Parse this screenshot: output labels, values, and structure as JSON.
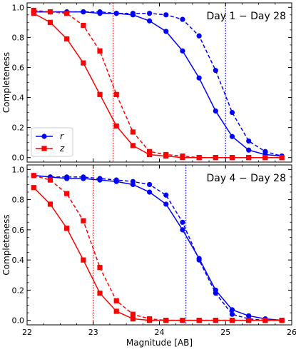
{
  "chart_data": [
    {
      "type": "line",
      "title": "Day 1 − Day 28",
      "xlabel": "",
      "ylabel": "Completeness",
      "xlim": [
        22,
        26
      ],
      "ylim": [
        -0.03,
        1.03
      ],
      "x_ticks": [
        "22",
        "23",
        "24",
        "25",
        "26"
      ],
      "y_ticks": [
        "0.0",
        "0.2",
        "0.4",
        "0.6",
        "0.8",
        "1.0"
      ],
      "show_x_tick_labels": false,
      "legend": {
        "position": "lower-left",
        "entries": [
          "r",
          "z"
        ]
      },
      "series": [
        {
          "name": "r",
          "style": "solid",
          "marker": "circle",
          "color": "#0000ff",
          "x": [
            22.1,
            22.35,
            22.6,
            22.85,
            23.1,
            23.35,
            23.6,
            23.85,
            24.1,
            24.35,
            24.6,
            24.85,
            25.1,
            25.35,
            25.6,
            25.85
          ],
          "y": [
            0.97,
            0.97,
            0.97,
            0.97,
            0.96,
            0.96,
            0.95,
            0.91,
            0.84,
            0.71,
            0.53,
            0.31,
            0.14,
            0.05,
            0.02,
            0.01
          ]
        },
        {
          "name": "",
          "style": "dashed",
          "marker": "circle",
          "color": "#0000ff",
          "x": [
            22.1,
            22.35,
            22.6,
            22.85,
            23.1,
            23.35,
            23.6,
            23.85,
            24.1,
            24.35,
            24.6,
            24.85,
            25.1,
            25.35,
            25.6,
            25.85
          ],
          "y": [
            0.97,
            0.97,
            0.97,
            0.97,
            0.97,
            0.96,
            0.96,
            0.96,
            0.95,
            0.92,
            0.81,
            0.58,
            0.3,
            0.11,
            0.04,
            0.01
          ]
        },
        {
          "name": "z",
          "style": "solid",
          "marker": "square",
          "color": "#ff0000",
          "x": [
            22.1,
            22.35,
            22.6,
            22.85,
            23.1,
            23.35,
            23.6,
            23.85,
            24.1,
            24.35,
            24.6,
            24.85,
            25.1,
            25.35,
            25.6,
            25.85
          ],
          "y": [
            0.96,
            0.9,
            0.79,
            0.63,
            0.42,
            0.21,
            0.08,
            0.02,
            0.01,
            0.0,
            0.0,
            0.0,
            0.0,
            0.0,
            0.0,
            0.0
          ]
        },
        {
          "name": "",
          "style": "dashed",
          "marker": "square",
          "color": "#ff0000",
          "x": [
            22.1,
            22.35,
            22.6,
            22.85,
            23.1,
            23.35,
            23.6,
            23.85,
            24.1,
            24.35,
            24.6,
            24.85,
            25.1,
            25.35,
            25.6,
            25.85
          ],
          "y": [
            0.98,
            0.97,
            0.96,
            0.88,
            0.71,
            0.42,
            0.17,
            0.04,
            0.02,
            0.01,
            0.0,
            0.0,
            0.0,
            0.0,
            0.0,
            0.0
          ]
        }
      ],
      "vlines": [
        {
          "x": 23.3,
          "color": "#ff0000",
          "style": "dotted"
        },
        {
          "x": 25.0,
          "color": "#0000ff",
          "style": "dotted"
        }
      ]
    },
    {
      "type": "line",
      "title": "Day 4 − Day 28",
      "xlabel": "Magnitude [AB]",
      "ylabel": "Completeness",
      "xlim": [
        22,
        26
      ],
      "ylim": [
        -0.03,
        1.03
      ],
      "x_ticks": [
        "22",
        "23",
        "24",
        "25",
        "26"
      ],
      "y_ticks": [
        "0.0",
        "0.2",
        "0.4",
        "0.6",
        "0.8",
        "1.0"
      ],
      "show_x_tick_labels": true,
      "series": [
        {
          "name": "r",
          "style": "solid",
          "marker": "circle",
          "color": "#0000ff",
          "x": [
            22.1,
            22.35,
            22.6,
            22.85,
            23.1,
            23.35,
            23.6,
            23.85,
            24.1,
            24.35,
            24.6,
            24.85,
            25.1,
            25.35,
            25.6,
            25.85
          ],
          "y": [
            0.96,
            0.95,
            0.94,
            0.94,
            0.93,
            0.92,
            0.9,
            0.85,
            0.77,
            0.6,
            0.41,
            0.2,
            0.07,
            0.03,
            0.01,
            0.0
          ]
        },
        {
          "name": "",
          "style": "dashed",
          "marker": "circle",
          "color": "#0000ff",
          "x": [
            22.1,
            22.35,
            22.6,
            22.85,
            23.1,
            23.35,
            23.6,
            23.85,
            24.1,
            24.35,
            24.6,
            24.85,
            25.1,
            25.35,
            25.6,
            25.85
          ],
          "y": [
            0.96,
            0.95,
            0.95,
            0.95,
            0.94,
            0.93,
            0.92,
            0.9,
            0.83,
            0.65,
            0.4,
            0.18,
            0.04,
            0.01,
            0.0,
            0.0
          ]
        },
        {
          "name": "z",
          "style": "solid",
          "marker": "square",
          "color": "#ff0000",
          "x": [
            22.1,
            22.35,
            22.6,
            22.85,
            23.1,
            23.35,
            23.6,
            23.85,
            24.1,
            24.35,
            24.6,
            24.85,
            25.1,
            25.35,
            25.6,
            25.85
          ],
          "y": [
            0.88,
            0.77,
            0.61,
            0.4,
            0.18,
            0.06,
            0.01,
            0.0,
            0.0,
            0.0,
            0.0,
            0.0,
            0.0,
            0.0,
            0.0,
            0.0
          ]
        },
        {
          "name": "",
          "style": "dashed",
          "marker": "square",
          "color": "#ff0000",
          "x": [
            22.1,
            22.35,
            22.6,
            22.85,
            23.1,
            23.35,
            23.6,
            23.85,
            24.1,
            24.35,
            24.6,
            24.85,
            25.1,
            25.35,
            25.6,
            25.85
          ],
          "y": [
            0.96,
            0.93,
            0.84,
            0.66,
            0.35,
            0.13,
            0.04,
            0.01,
            0.0,
            0.0,
            0.0,
            0.0,
            0.0,
            0.0,
            0.0,
            0.0
          ]
        }
      ],
      "vlines": [
        {
          "x": 23.0,
          "color": "#ff0000",
          "style": "dotted"
        },
        {
          "x": 24.4,
          "color": "#0000ff",
          "style": "dotted"
        }
      ]
    }
  ]
}
